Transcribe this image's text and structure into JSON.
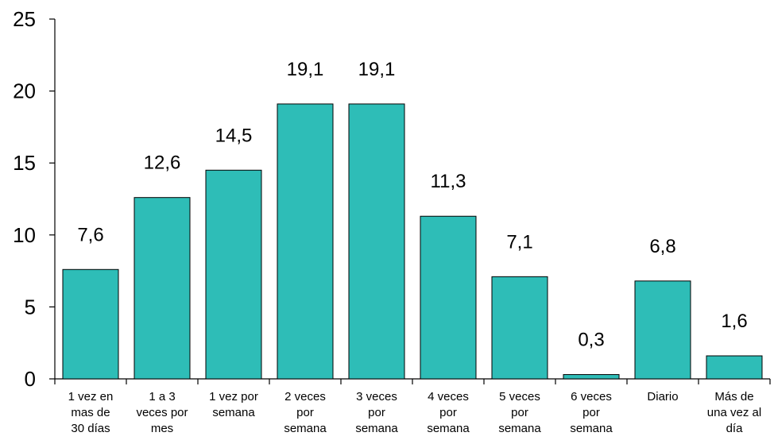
{
  "chart_data": {
    "type": "bar",
    "categories": [
      "1 vez en mas de 30 días",
      "1 a 3 veces por mes",
      "1 vez por semana",
      "2 veces por semana",
      "3 veces por semana",
      "4 veces por semana",
      "5 veces por semana",
      "6 veces por semana",
      "Diario",
      "Más de una vez al día"
    ],
    "category_lines": [
      [
        "1 vez en",
        "mas de",
        "30 días"
      ],
      [
        "1 a 3",
        "veces por",
        "mes"
      ],
      [
        "1 vez por",
        "semana"
      ],
      [
        "2 veces",
        "por",
        "semana"
      ],
      [
        "3 veces",
        "por",
        "semana"
      ],
      [
        "4 veces",
        "por",
        "semana"
      ],
      [
        "5 veces",
        "por",
        "semana"
      ],
      [
        "6 veces",
        "por",
        "semana"
      ],
      [
        "Diario"
      ],
      [
        "Más de",
        "una vez al",
        "día"
      ]
    ],
    "values": [
      7.6,
      12.6,
      14.5,
      19.1,
      19.1,
      11.3,
      7.1,
      0.3,
      6.8,
      1.6
    ],
    "value_labels": [
      "7,6",
      "12,6",
      "14,5",
      "19,1",
      "19,1",
      "11,3",
      "7,1",
      "0,3",
      "6,8",
      "1,6"
    ],
    "ylim": [
      0,
      25
    ],
    "yticks": [
      0,
      5,
      10,
      15,
      20,
      25
    ],
    "title": "",
    "xlabel": "",
    "ylabel": "",
    "grid": false,
    "bar_color": "#2ebdb7",
    "bar_edge_color": "#000000"
  }
}
